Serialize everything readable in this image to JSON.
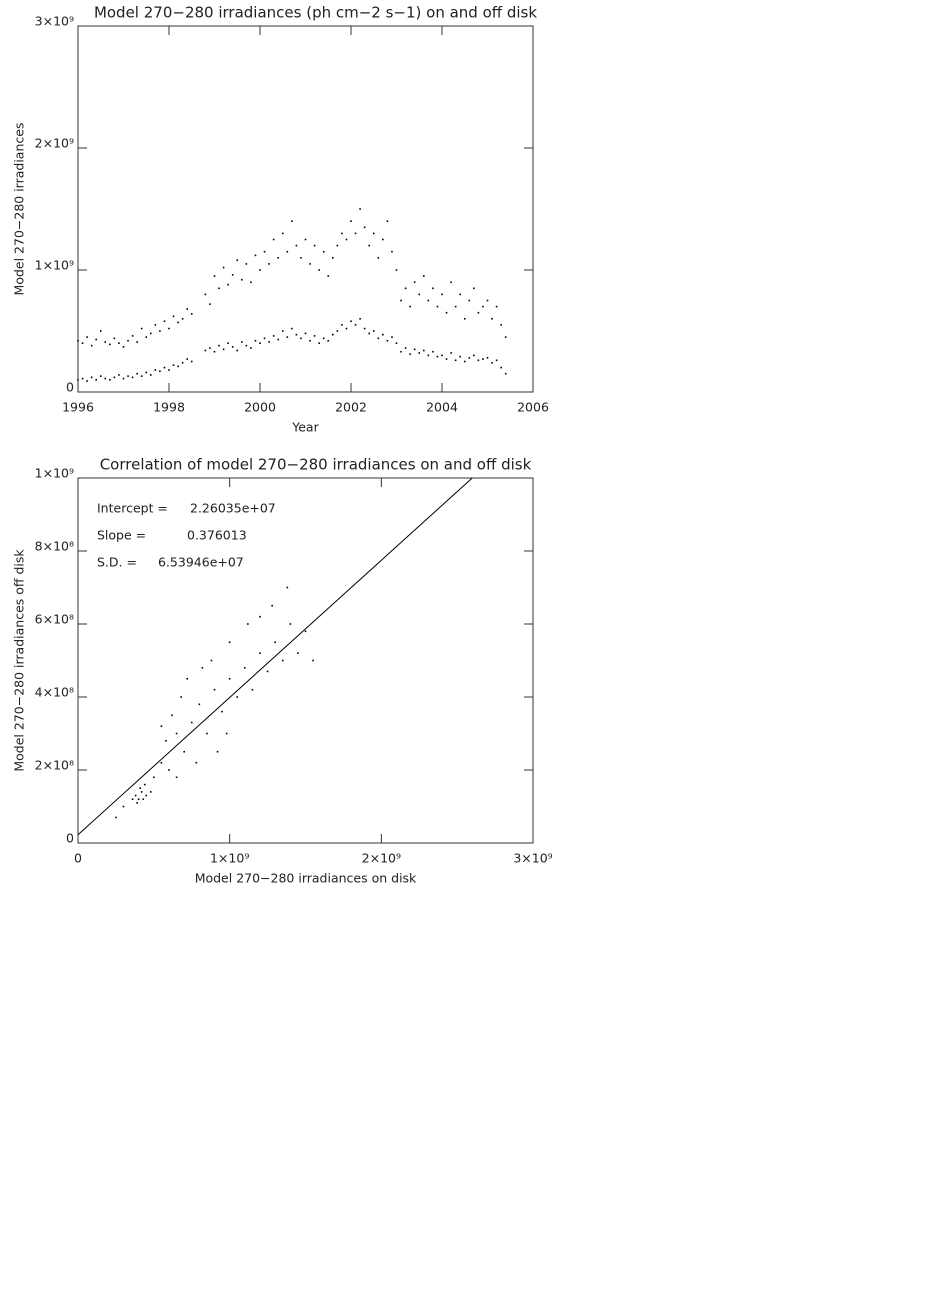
{
  "chart_data": [
    {
      "type": "scatter",
      "title": "Model 270−280 irradiances (ph cm−2 s−1) on and off disk",
      "xlabel": "Year",
      "ylabel": "Model 270−280 irradiances",
      "xlim": [
        1996,
        2006
      ],
      "xticks": [
        1996,
        1998,
        2000,
        2002,
        2004,
        2006
      ],
      "ylim": [
        0,
        3000000000.0
      ],
      "yticks": [
        0,
        {
          "value": 1000000000.0,
          "label": "1×10⁹"
        },
        {
          "value": 2000000000.0,
          "label": "2×10⁹"
        },
        {
          "value": 3000000000.0,
          "label": "3×10⁹"
        }
      ],
      "x": [
        1996.0,
        1996.1,
        1996.2,
        1996.3,
        1996.4,
        1996.5,
        1996.6,
        1996.7,
        1996.8,
        1996.9,
        1997.0,
        1997.1,
        1997.2,
        1997.3,
        1997.4,
        1997.5,
        1997.6,
        1997.7,
        1997.8,
        1997.9,
        1998.0,
        1998.1,
        1998.2,
        1998.3,
        1998.4,
        1998.5,
        1998.8,
        1998.9,
        1999.0,
        1999.1,
        1999.2,
        1999.3,
        1999.4,
        1999.5,
        1999.6,
        1999.7,
        1999.8,
        1999.9,
        2000.0,
        2000.1,
        2000.2,
        2000.3,
        2000.4,
        2000.5,
        2000.6,
        2000.7,
        2000.8,
        2000.9,
        2001.0,
        2001.1,
        2001.2,
        2001.3,
        2001.4,
        2001.5,
        2001.6,
        2001.7,
        2001.8,
        2001.9,
        2002.0,
        2002.1,
        2002.2,
        2002.3,
        2002.4,
        2002.5,
        2002.6,
        2002.7,
        2002.8,
        2002.9,
        2003.0,
        2003.1,
        2003.2,
        2003.3,
        2003.4,
        2003.5,
        2003.6,
        2003.7,
        2003.8,
        2003.9,
        2004.0,
        2004.1,
        2004.2,
        2004.3,
        2004.4,
        2004.5,
        2004.6,
        2004.7,
        2004.8,
        2004.9,
        2005.0,
        2005.1,
        2005.2,
        2005.3,
        2005.4
      ],
      "series": [
        {
          "color": "#000000",
          "values": [
            420000000.0,
            400000000.0,
            450000000.0,
            380000000.0,
            430000000.0,
            500000000.0,
            410000000.0,
            390000000.0,
            440000000.0,
            400000000.0,
            370000000.0,
            420000000.0,
            460000000.0,
            410000000.0,
            520000000.0,
            450000000.0,
            480000000.0,
            550000000.0,
            500000000.0,
            580000000.0,
            520000000.0,
            620000000.0,
            570000000.0,
            600000000.0,
            680000000.0,
            640000000.0,
            800000000.0,
            720000000.0,
            950000000.0,
            850000000.0,
            1020000000.0,
            880000000.0,
            960000000.0,
            1080000000.0,
            920000000.0,
            1050000000.0,
            900000000.0,
            1120000000.0,
            1000000000.0,
            1150000000.0,
            1050000000.0,
            1250000000.0,
            1100000000.0,
            1300000000.0,
            1150000000.0,
            1400000000.0,
            1200000000.0,
            1100000000.0,
            1250000000.0,
            1050000000.0,
            1200000000.0,
            1000000000.0,
            1150000000.0,
            950000000.0,
            1100000000.0,
            1200000000.0,
            1300000000.0,
            1250000000.0,
            1400000000.0,
            1300000000.0,
            1500000000.0,
            1350000000.0,
            1200000000.0,
            1300000000.0,
            1100000000.0,
            1250000000.0,
            1400000000.0,
            1150000000.0,
            1000000000.0,
            750000000.0,
            850000000.0,
            700000000.0,
            900000000.0,
            800000000.0,
            950000000.0,
            750000000.0,
            850000000.0,
            700000000.0,
            800000000.0,
            650000000.0,
            900000000.0,
            700000000.0,
            800000000.0,
            600000000.0,
            750000000.0,
            850000000.0,
            650000000.0,
            700000000.0,
            750000000.0,
            600000000.0,
            700000000.0,
            550000000.0,
            450000000.0
          ]
        },
        {
          "color": "#000000",
          "values": [
            100000000.0,
            110000000.0,
            90000000.0,
            120000000.0,
            100000000.0,
            130000000.0,
            110000000.0,
            100000000.0,
            120000000.0,
            140000000.0,
            110000000.0,
            130000000.0,
            120000000.0,
            150000000.0,
            130000000.0,
            160000000.0,
            140000000.0,
            180000000.0,
            170000000.0,
            200000000.0,
            180000000.0,
            220000000.0,
            210000000.0,
            240000000.0,
            270000000.0,
            250000000.0,
            340000000.0,
            360000000.0,
            330000000.0,
            380000000.0,
            350000000.0,
            400000000.0,
            370000000.0,
            340000000.0,
            410000000.0,
            380000000.0,
            360000000.0,
            420000000.0,
            400000000.0,
            440000000.0,
            410000000.0,
            460000000.0,
            430000000.0,
            500000000.0,
            450000000.0,
            520000000.0,
            470000000.0,
            440000000.0,
            480000000.0,
            420000000.0,
            460000000.0,
            400000000.0,
            440000000.0,
            420000000.0,
            470000000.0,
            500000000.0,
            550000000.0,
            520000000.0,
            580000000.0,
            550000000.0,
            600000000.0,
            520000000.0,
            480000000.0,
            500000000.0,
            440000000.0,
            470000000.0,
            420000000.0,
            450000000.0,
            400000000.0,
            330000000.0,
            360000000.0,
            310000000.0,
            350000000.0,
            320000000.0,
            340000000.0,
            300000000.0,
            330000000.0,
            290000000.0,
            300000000.0,
            270000000.0,
            320000000.0,
            260000000.0,
            290000000.0,
            250000000.0,
            280000000.0,
            300000000.0,
            260000000.0,
            270000000.0,
            280000000.0,
            240000000.0,
            260000000.0,
            200000000.0,
            150000000.0
          ]
        }
      ]
    },
    {
      "type": "scatter",
      "title": "Correlation of model 270−280 irradiances on and off disk",
      "xlabel": "Model 270−280 irradiances on disk",
      "ylabel": "Model 270−280 irradiances off disk",
      "xlim": [
        0,
        3000000000.0
      ],
      "xticks": [
        0,
        {
          "value": 1000000000.0,
          "label": "1×10⁹"
        },
        {
          "value": 2000000000.0,
          "label": "2×10⁹"
        },
        {
          "value": 3000000000.0,
          "label": "3×10⁹"
        }
      ],
      "ylim": [
        0,
        1000000000.0
      ],
      "yticks": [
        0,
        {
          "value": 200000000.0,
          "label": "2×10⁸"
        },
        {
          "value": 400000000.0,
          "label": "4×10⁸"
        },
        {
          "value": 600000000.0,
          "label": "6×10⁸"
        },
        {
          "value": 800000000.0,
          "label": "8×10⁸"
        },
        {
          "value": 1000000000.0,
          "label": "1×10⁹"
        }
      ],
      "x": [
        380000000.0,
        400000000.0,
        420000000.0,
        450000000.0,
        410000000.0,
        390000000.0,
        440000000.0,
        480000000.0,
        360000000.0,
        430000000.0,
        500000000.0,
        550000000.0,
        600000000.0,
        580000000.0,
        650000000.0,
        700000000.0,
        620000000.0,
        750000000.0,
        800000000.0,
        680000000.0,
        850000000.0,
        900000000.0,
        950000000.0,
        1000000000.0,
        880000000.0,
        1050000000.0,
        1100000000.0,
        1150000000.0,
        1200000000.0,
        1000000000.0,
        1250000000.0,
        1300000000.0,
        1350000000.0,
        1400000000.0,
        1200000000.0,
        1450000000.0,
        1500000000.0,
        720000000.0,
        550000000.0,
        780000000.0,
        980000000.0,
        1120000000.0,
        1280000000.0,
        300000000.0,
        250000000.0,
        1550000000.0,
        650000000.0,
        920000000.0,
        1380000000.0,
        820000000.0
      ],
      "series": [
        {
          "color": "#000000",
          "values": [
            130000000.0,
            120000000.0,
            140000000.0,
            130000000.0,
            150000000.0,
            110000000.0,
            160000000.0,
            140000000.0,
            120000000.0,
            120000000.0,
            180000000.0,
            220000000.0,
            200000000.0,
            280000000.0,
            300000000.0,
            250000000.0,
            350000000.0,
            330000000.0,
            380000000.0,
            400000000.0,
            300000000.0,
            420000000.0,
            360000000.0,
            450000000.0,
            500000000.0,
            400000000.0,
            480000000.0,
            420000000.0,
            520000000.0,
            550000000.0,
            470000000.0,
            550000000.0,
            500000000.0,
            600000000.0,
            620000000.0,
            520000000.0,
            580000000.0,
            450000000.0,
            320000000.0,
            220000000.0,
            300000000.0,
            600000000.0,
            650000000.0,
            100000000.0,
            70000000.0,
            500000000.0,
            180000000.0,
            250000000.0,
            700000000.0,
            480000000.0
          ]
        }
      ],
      "fit": {
        "intercept": 22603500,
        "slope": 0.376013
      },
      "annotations": [
        {
          "text": "Intercept =",
          "value": "2.26035e+07"
        },
        {
          "text": "Slope =",
          "value": "0.376013"
        },
        {
          "text": "S.D. =",
          "value": "6.53946e+07"
        }
      ]
    }
  ]
}
